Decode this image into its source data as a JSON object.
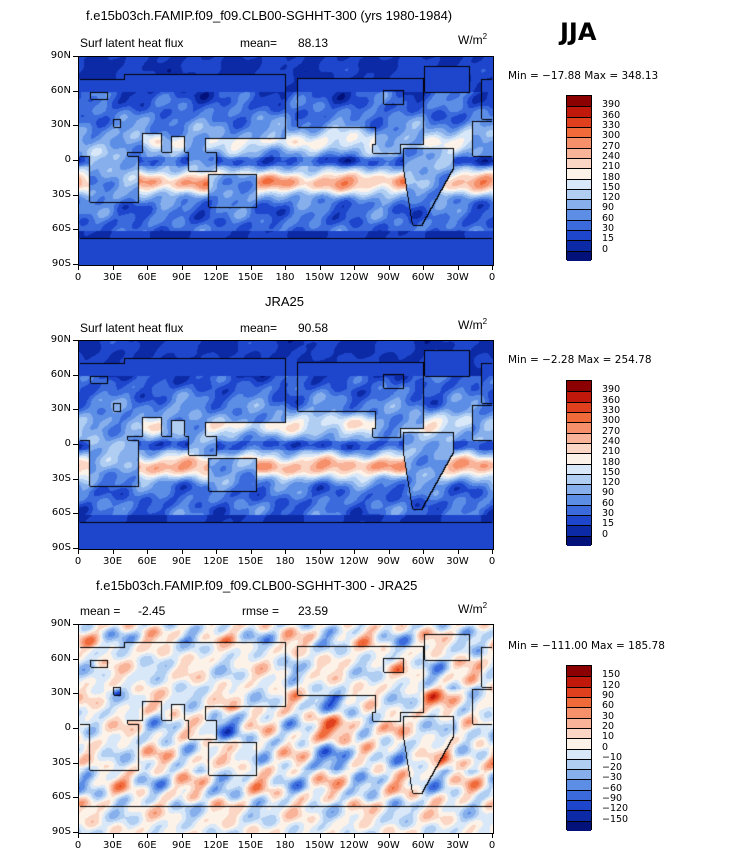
{
  "season": "JJA",
  "units": {
    "base": "W/m",
    "sup": "2"
  },
  "panels": [
    {
      "title": "f.e15b03ch.FAMIP.f09_f09.CLB00-SGHHT-300 (yrs 1980-1984)",
      "left_label": "Surf latent heat flux",
      "stat_label": "mean=",
      "stat_value": "88.13",
      "min_max": "Min = −17.88 Max = 348.13",
      "kind": "abs",
      "seed": 3
    },
    {
      "title": "JRA25",
      "left_label": "Surf latent heat flux",
      "stat_label": "mean=",
      "stat_value": "90.58",
      "min_max": "Min =  −2.28 Max = 254.78",
      "kind": "abs",
      "seed": 11
    },
    {
      "title": "f.e15b03ch.FAMIP.f09_f09.CLB00-SGHHT-300 - JRA25",
      "left_label": "mean =",
      "left_value": "-2.45",
      "stat_label": "rmse =",
      "stat_value": "23.59",
      "min_max": "Min = −111.00 Max = 185.78",
      "kind": "diff",
      "seed": 23
    }
  ],
  "lat_ticks": [
    "90N",
    "60N",
    "30N",
    "0",
    "30S",
    "60S",
    "90S"
  ],
  "lon_ticks": [
    "0",
    "30E",
    "60E",
    "90E",
    "120E",
    "150E",
    "180",
    "150W",
    "120W",
    "90W",
    "60W",
    "30W",
    "0"
  ],
  "colorbar_abs": {
    "labels": [
      "390",
      "360",
      "330",
      "300",
      "270",
      "240",
      "210",
      "180",
      "150",
      "120",
      "90",
      "60",
      "30",
      "15",
      "0"
    ],
    "colors": [
      "#8b0000",
      "#c1180c",
      "#e0401e",
      "#f06a3a",
      "#f5906a",
      "#f8b398",
      "#fbd6c4",
      "#fdf2e8",
      "#d9e8f8",
      "#b0cdf2",
      "#86afec",
      "#5d8ee6",
      "#3a6adc",
      "#1e46cc",
      "#0c2aa6",
      "#02127a"
    ]
  },
  "colorbar_diff": {
    "labels": [
      "150",
      "120",
      "90",
      "60",
      "30",
      "20",
      "10",
      "0",
      "−10",
      "−20",
      "−30",
      "−60",
      "−90",
      "−120",
      "−150"
    ],
    "colors": [
      "#8b0000",
      "#c1180c",
      "#e0401e",
      "#f06a3a",
      "#f5906a",
      "#f8b398",
      "#fbd6c4",
      "#fdf2e8",
      "#d9e8f8",
      "#b0cdf2",
      "#86afec",
      "#5d8ee6",
      "#3a6adc",
      "#1e46cc",
      "#0c2aa6",
      "#02127a"
    ]
  },
  "chart_data": [
    {
      "type": "heatmap",
      "title": "f.e15b03ch.FAMIP.f09_f09.CLB00-SGHHT-300 (yrs 1980-1984)",
      "variable": "Surf latent heat flux",
      "units": "W/m2",
      "mean": 88.13,
      "min": -17.88,
      "max": 348.13,
      "levels": [
        0,
        15,
        30,
        60,
        90,
        120,
        150,
        180,
        210,
        240,
        270,
        300,
        330,
        360,
        390
      ],
      "lat_range": [
        -90,
        90
      ],
      "lon_range": [
        0,
        360
      ]
    },
    {
      "type": "heatmap",
      "title": "JRA25",
      "variable": "Surf latent heat flux",
      "units": "W/m2",
      "mean": 90.58,
      "min": -2.28,
      "max": 254.78,
      "levels": [
        0,
        15,
        30,
        60,
        90,
        120,
        150,
        180,
        210,
        240,
        270,
        300,
        330,
        360,
        390
      ],
      "lat_range": [
        -90,
        90
      ],
      "lon_range": [
        0,
        360
      ]
    },
    {
      "type": "heatmap",
      "title": "f.e15b03ch.FAMIP.f09_f09.CLB00-SGHHT-300 - JRA25",
      "units": "W/m2",
      "mean": -2.45,
      "rmse": 23.59,
      "min": -111.0,
      "max": 185.78,
      "levels": [
        -150,
        -120,
        -90,
        -60,
        -30,
        -20,
        -10,
        0,
        10,
        20,
        30,
        60,
        90,
        120,
        150
      ],
      "lat_range": [
        -90,
        90
      ],
      "lon_range": [
        0,
        360
      ]
    }
  ]
}
